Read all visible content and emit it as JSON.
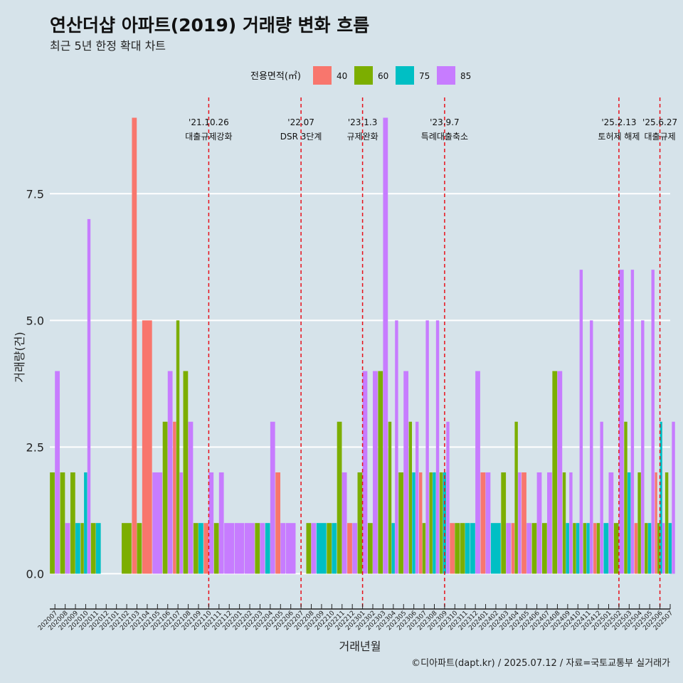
{
  "chart_data": {
    "type": "bar",
    "title": "연산더샵 아파트(2019) 거래량 변화 흐름",
    "subtitle": "최근 5년 한정 확대 차트",
    "xlabel": "거래년월",
    "ylabel": "거래량(건)",
    "ylim": [
      -0.5,
      9.4
    ],
    "yticks": [
      0,
      2.5,
      5,
      7.5
    ],
    "ytick_labels": [
      "0.0",
      "2.5",
      "5.0",
      "7.5"
    ],
    "legend": {
      "title": "전용면적(㎡)",
      "position": "top",
      "entries": [
        {
          "name": "40",
          "color": "#f8766d"
        },
        {
          "name": "60",
          "color": "#7cae00"
        },
        {
          "name": "75",
          "color": "#00bfc4"
        },
        {
          "name": "85",
          "color": "#c77cff"
        }
      ]
    },
    "series_order": [
      "40",
      "60",
      "75",
      "85"
    ],
    "months": [
      {
        "label": "202007",
        "bars": {
          "60": 2,
          "85": 4
        }
      },
      {
        "label": "202008",
        "bars": {
          "60": 2,
          "85": 1
        }
      },
      {
        "label": "202009",
        "bars": {
          "60": 2,
          "75": 1
        }
      },
      {
        "label": "202010",
        "bars": {
          "60": 1,
          "75": 2,
          "85": 7
        }
      },
      {
        "label": "202011",
        "bars": {
          "60": 1,
          "75": 1
        }
      },
      {
        "label": "202012",
        "bars": {}
      },
      {
        "label": "202101",
        "bars": {}
      },
      {
        "label": "202102",
        "bars": {
          "60": 1
        }
      },
      {
        "label": "202103",
        "bars": {
          "40": 9,
          "60": 1
        }
      },
      {
        "label": "202104",
        "bars": {
          "40": 5
        }
      },
      {
        "label": "202105",
        "bars": {
          "85": 2
        }
      },
      {
        "label": "202106",
        "bars": {
          "60": 3,
          "85": 4
        }
      },
      {
        "label": "202107",
        "bars": {
          "40": 3,
          "60": 5,
          "85": 2
        }
      },
      {
        "label": "202108",
        "bars": {
          "60": 4,
          "85": 3
        }
      },
      {
        "label": "202109",
        "bars": {
          "60": 1,
          "75": 1
        }
      },
      {
        "label": "202110",
        "bars": {
          "40": 1,
          "85": 2
        }
      },
      {
        "label": "202111",
        "bars": {
          "60": 1,
          "85": 2
        }
      },
      {
        "label": "202112",
        "bars": {
          "85": 1
        }
      },
      {
        "label": "202201",
        "bars": {
          "85": 1
        }
      },
      {
        "label": "202202",
        "bars": {
          "85": 1
        }
      },
      {
        "label": "202203",
        "bars": {
          "60": 1,
          "85": 1
        }
      },
      {
        "label": "202204",
        "bars": {
          "75": 1,
          "85": 3
        }
      },
      {
        "label": "202205",
        "bars": {
          "40": 2,
          "85": 1
        }
      },
      {
        "label": "202206",
        "bars": {
          "85": 1
        }
      },
      {
        "label": "202207",
        "bars": {}
      },
      {
        "label": "202208",
        "bars": {
          "60": 1,
          "85": 1
        }
      },
      {
        "label": "202209",
        "bars": {
          "75": 1
        }
      },
      {
        "label": "202210",
        "bars": {
          "60": 1,
          "75": 1
        }
      },
      {
        "label": "202211",
        "bars": {
          "60": 3,
          "85": 2
        }
      },
      {
        "label": "202212",
        "bars": {
          "40": 1,
          "85": 1
        }
      },
      {
        "label": "202301",
        "bars": {
          "60": 2,
          "85": 4
        }
      },
      {
        "label": "202302",
        "bars": {
          "60": 1,
          "85": 4
        }
      },
      {
        "label": "202303",
        "bars": {
          "60": 4,
          "85": 9
        }
      },
      {
        "label": "202304",
        "bars": {
          "60": 3,
          "75": 1,
          "85": 5
        }
      },
      {
        "label": "202305",
        "bars": {
          "60": 2,
          "85": 4
        }
      },
      {
        "label": "202306",
        "bars": {
          "60": 3,
          "75": 2,
          "85": 3
        }
      },
      {
        "label": "202307",
        "bars": {
          "40": 2,
          "60": 1,
          "85": 5
        }
      },
      {
        "label": "202308",
        "bars": {
          "60": 2,
          "75": 2,
          "85": 5
        }
      },
      {
        "label": "202309",
        "bars": {
          "60": 2,
          "75": 2,
          "85": 3
        }
      },
      {
        "label": "202310",
        "bars": {
          "40": 1,
          "60": 1
        }
      },
      {
        "label": "202311",
        "bars": {
          "60": 1,
          "75": 1
        }
      },
      {
        "label": "202312",
        "bars": {
          "75": 1,
          "85": 4
        }
      },
      {
        "label": "202401",
        "bars": {
          "40": 2,
          "85": 2
        }
      },
      {
        "label": "202402",
        "bars": {
          "75": 1
        }
      },
      {
        "label": "202403",
        "bars": {
          "60": 2,
          "85": 1
        }
      },
      {
        "label": "202404",
        "bars": {
          "40": 1,
          "60": 3,
          "85": 2
        }
      },
      {
        "label": "202405",
        "bars": {
          "40": 2,
          "85": 1
        }
      },
      {
        "label": "202406",
        "bars": {
          "60": 1,
          "85": 2
        }
      },
      {
        "label": "202407",
        "bars": {
          "60": 1,
          "85": 2
        }
      },
      {
        "label": "202408",
        "bars": {
          "60": 4,
          "85": 4
        }
      },
      {
        "label": "202409",
        "bars": {
          "60": 2,
          "75": 1,
          "85": 2
        }
      },
      {
        "label": "202410",
        "bars": {
          "60": 1,
          "75": 1,
          "85": 6
        }
      },
      {
        "label": "202411",
        "bars": {
          "60": 1,
          "75": 1,
          "85": 5
        }
      },
      {
        "label": "202412",
        "bars": {
          "40": 1,
          "60": 1,
          "85": 3
        }
      },
      {
        "label": "202501",
        "bars": {
          "75": 1,
          "85": 2
        }
      },
      {
        "label": "202502",
        "bars": {
          "60": 1,
          "85": 6
        }
      },
      {
        "label": "202503",
        "bars": {
          "60": 3,
          "75": 2,
          "85": 6
        }
      },
      {
        "label": "202504",
        "bars": {
          "40": 1,
          "60": 2,
          "85": 5
        }
      },
      {
        "label": "202505",
        "bars": {
          "60": 1,
          "75": 1,
          "85": 6
        }
      },
      {
        "label": "202506",
        "bars": {
          "40": 2,
          "60": 1,
          "75": 3,
          "85": 1
        }
      },
      {
        "label": "202507",
        "bars": {
          "60": 2,
          "75": 1,
          "85": 3
        }
      }
    ],
    "annotations": [
      {
        "month": "202110",
        "line1": "'21.10.26",
        "line2": "대출규제강화"
      },
      {
        "month": "202207",
        "line1": "'22.07",
        "line2": "DSR 3단계"
      },
      {
        "month": "202301",
        "line1": "'23.1.3",
        "line2": "규제완화"
      },
      {
        "month": "202309",
        "line1": "'23.9.7",
        "line2": "특례대출축소"
      },
      {
        "month": "202502",
        "line1": "'25.2.13",
        "line2": "토허제 해제"
      },
      {
        "month": "202506",
        "line1": "'25.6.27",
        "line2": "대출규제"
      }
    ],
    "caption": "©디아파트(dapt.kr) / 2025.07.12 / 자료=국토교통부 실거래가"
  }
}
